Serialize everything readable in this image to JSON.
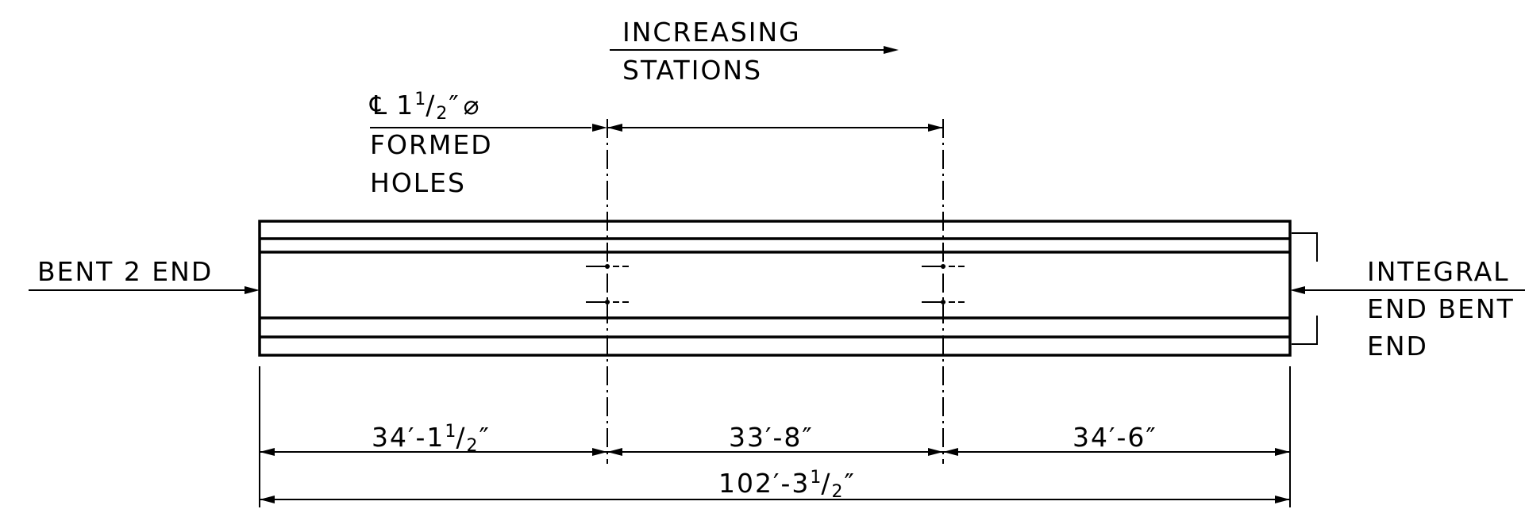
{
  "labels": {
    "direction_line1": "INCREASING",
    "direction_line2": "STATIONS",
    "holes_cl_symbol": "℄",
    "holes_dia_whole": "1",
    "holes_dia_num": "1",
    "holes_dia_den": "2",
    "holes_dia_unit": "″",
    "holes_dia_symbol": "⌀",
    "holes_line2": "FORMED",
    "holes_line3": "HOLES",
    "left_end": "BENT 2 END",
    "right_end_line1": "INTEGRAL",
    "right_end_line2": "END BENT",
    "right_end_line3": "END"
  },
  "dimensions": {
    "span_left": {
      "main": "34′-1",
      "num": "1",
      "den": "2",
      "unit": "″"
    },
    "span_middle": "33′-8″",
    "span_right": "34′-6″",
    "overall": {
      "main": "102′-3",
      "num": "1",
      "den": "2",
      "unit": "″"
    }
  },
  "colors": {
    "line": "#000000",
    "background": "#ffffff"
  }
}
